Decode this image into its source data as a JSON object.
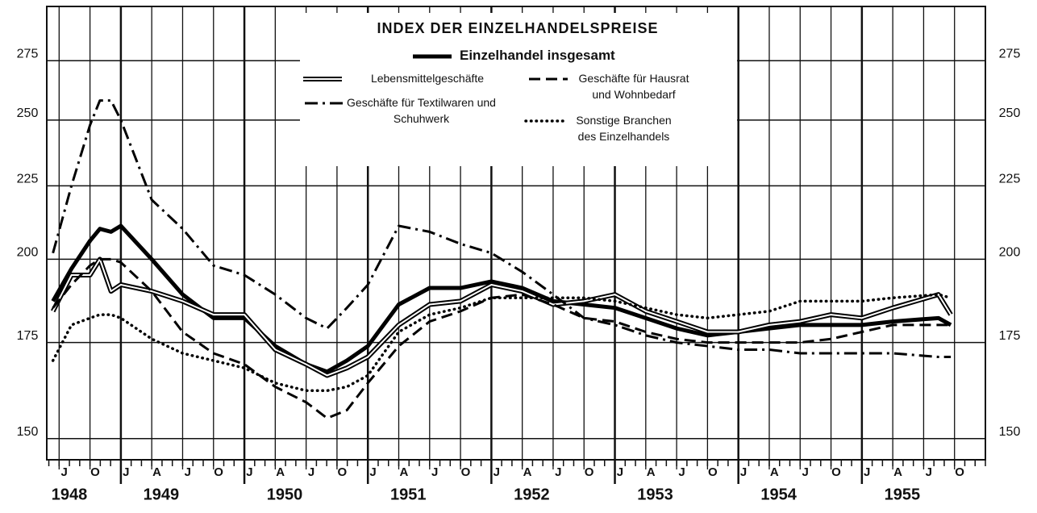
{
  "chart_data": {
    "type": "line",
    "title": "INDEX DER EINZELHANDELSPREISE",
    "log_scale": true,
    "grid": true,
    "legend": "top",
    "xlim": [
      1948.4,
      1956.0
    ],
    "ylim": [
      145,
      300
    ],
    "yticks": [
      150,
      175,
      200,
      225,
      250,
      275
    ],
    "xticks": [
      {
        "value": 1948.5,
        "label": "J"
      },
      {
        "value": 1948.75,
        "label": "O"
      },
      {
        "value": 1949,
        "label": "J"
      },
      {
        "value": 1949.25,
        "label": "A"
      },
      {
        "value": 1949.5,
        "label": "J"
      },
      {
        "value": 1949.75,
        "label": "O"
      },
      {
        "value": 1950,
        "label": "J"
      },
      {
        "value": 1950.25,
        "label": "A"
      },
      {
        "value": 1950.5,
        "label": "J"
      },
      {
        "value": 1950.75,
        "label": "O"
      },
      {
        "value": 1951,
        "label": "J"
      },
      {
        "value": 1951.25,
        "label": "A"
      },
      {
        "value": 1951.5,
        "label": "J"
      },
      {
        "value": 1951.75,
        "label": "O"
      },
      {
        "value": 1952,
        "label": "J"
      },
      {
        "value": 1952.25,
        "label": "A"
      },
      {
        "value": 1952.5,
        "label": "J"
      },
      {
        "value": 1952.75,
        "label": "O"
      },
      {
        "value": 1953,
        "label": "J"
      },
      {
        "value": 1953.25,
        "label": "A"
      },
      {
        "value": 1953.5,
        "label": "J"
      },
      {
        "value": 1953.75,
        "label": "O"
      },
      {
        "value": 1954,
        "label": "J"
      },
      {
        "value": 1954.25,
        "label": "A"
      },
      {
        "value": 1954.5,
        "label": "J"
      },
      {
        "value": 1954.75,
        "label": "O"
      },
      {
        "value": 1955,
        "label": "J"
      },
      {
        "value": 1955.25,
        "label": "A"
      },
      {
        "value": 1955.5,
        "label": "J"
      },
      {
        "value": 1955.75,
        "label": "O"
      }
    ],
    "year_ticks": [
      1948,
      1949,
      1950,
      1951,
      1952,
      1953,
      1954,
      1955
    ],
    "x": [
      1948.45,
      1948.6,
      1948.75,
      1948.83,
      1948.92,
      1949.0,
      1949.25,
      1949.5,
      1949.75,
      1950.0,
      1950.25,
      1950.5,
      1950.67,
      1950.83,
      1951.0,
      1951.25,
      1951.5,
      1951.75,
      1952.0,
      1952.25,
      1952.5,
      1952.75,
      1953.0,
      1953.25,
      1953.5,
      1953.75,
      1954.0,
      1954.25,
      1954.5,
      1954.75,
      1955.0,
      1955.25,
      1955.62,
      1955.72
    ],
    "series": [
      {
        "name": "Einzelhandel insgesamt",
        "color": "#000000",
        "style": "solid",
        "values": [
          187,
          197,
          206,
          210,
          209,
          211,
          200,
          189,
          182,
          182,
          174,
          169,
          167,
          170,
          174,
          186,
          191,
          191,
          193,
          191,
          187,
          186,
          185,
          182,
          179,
          177,
          178,
          179,
          180,
          180,
          180,
          181,
          182,
          180
        ]
      },
      {
        "name": "Lebensmittelgeschäfte",
        "color": "#000000",
        "style": "double",
        "values": [
          184,
          195,
          195,
          200,
          190,
          192,
          190,
          187,
          183,
          183,
          173,
          169,
          166,
          168,
          171,
          180,
          186,
          187,
          192,
          190,
          186,
          187,
          189,
          184,
          181,
          178,
          178,
          180,
          181,
          183,
          182,
          185,
          189,
          183
        ]
      },
      {
        "name": "Geschäfte für Hausrat und Wohnbedarf",
        "color": "#000000",
        "style": "dash",
        "values": [
          185,
          192,
          198,
          200,
          200,
          199,
          190,
          178,
          172,
          169,
          163,
          159,
          155,
          157,
          164,
          174,
          181,
          184,
          188,
          189,
          186,
          182,
          181,
          178,
          176,
          175,
          175,
          175,
          175,
          176,
          178,
          180,
          180,
          180
        ]
      },
      {
        "name": "Geschäfte für Textilwaren und Schuhwerk",
        "color": "#000000",
        "style": "dashdot",
        "values": [
          202,
          225,
          248,
          258,
          258,
          250,
          220,
          210,
          198,
          195,
          189,
          182,
          179,
          185,
          192,
          211,
          209,
          205,
          202,
          196,
          189,
          182,
          180,
          177,
          175,
          174,
          173,
          173,
          172,
          172,
          172,
          172,
          171,
          171
        ]
      },
      {
        "name": "Sonstige Branchen des Einzelhandels",
        "color": "#000000",
        "style": "dot",
        "values": [
          170,
          180,
          182,
          183,
          183,
          182,
          176,
          172,
          170,
          168,
          164,
          162,
          162,
          163,
          166,
          178,
          183,
          185,
          188,
          188,
          188,
          188,
          187,
          185,
          183,
          182,
          183,
          184,
          187,
          187,
          187,
          188,
          189,
          188
        ]
      }
    ]
  }
}
